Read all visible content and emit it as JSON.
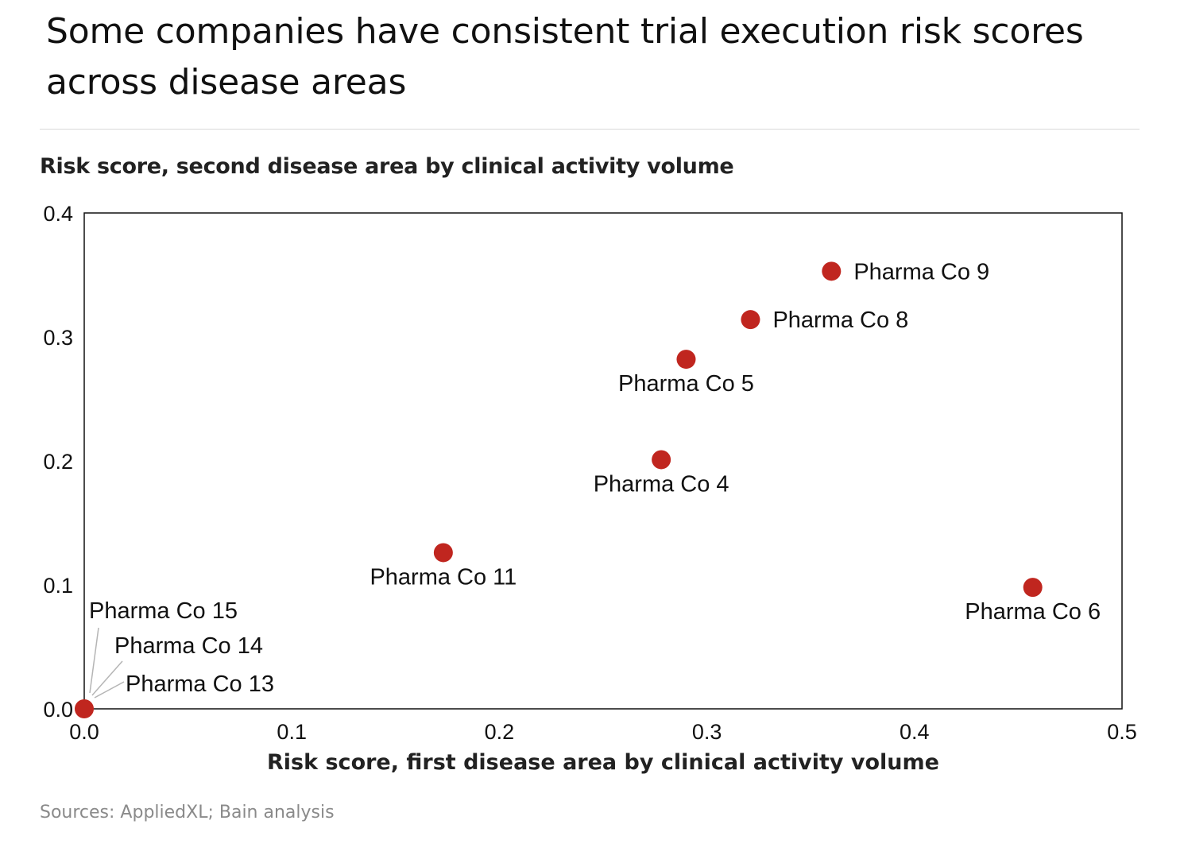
{
  "title": "Some companies have consistent trial execution risk scores across disease areas",
  "source": "Sources: AppliedXL; Bain analysis",
  "chart_data": {
    "type": "scatter",
    "title": "Some companies have consistent trial execution risk scores across disease areas",
    "xlabel": "Risk score, first disease area by clinical activity volume",
    "ylabel": "Risk score, second disease area by clinical activity volume",
    "xlim": [
      0,
      0.5
    ],
    "ylim": [
      0,
      0.4
    ],
    "xticks": [
      0,
      0.1,
      0.2,
      0.3,
      0.4,
      0.5
    ],
    "xtick_labels": [
      "0.0",
      "0.1",
      "0.2",
      "0.3",
      "0.4",
      "0.5"
    ],
    "yticks": [
      0,
      0.1,
      0.2,
      0.3,
      0.4
    ],
    "ytick_labels": [
      "0.0",
      "0.1",
      "0.2",
      "0.3",
      "0.4"
    ],
    "grid": false,
    "marker_color": "#c0261f",
    "points": [
      {
        "label": "Pharma Co 9",
        "x": 0.36,
        "y": 0.353,
        "label_pos": "right"
      },
      {
        "label": "Pharma Co 8",
        "x": 0.321,
        "y": 0.314,
        "label_pos": "right"
      },
      {
        "label": "Pharma Co 5",
        "x": 0.29,
        "y": 0.282,
        "label_pos": "below"
      },
      {
        "label": "Pharma Co 4",
        "x": 0.278,
        "y": 0.201,
        "label_pos": "below"
      },
      {
        "label": "Pharma Co 11",
        "x": 0.173,
        "y": 0.126,
        "label_pos": "below"
      },
      {
        "label": "Pharma Co 6",
        "x": 0.457,
        "y": 0.098,
        "label_pos": "below"
      },
      {
        "label": "Pharma Co 15",
        "x": 0.0,
        "y": 0.0,
        "label_pos": "callout-1"
      },
      {
        "label": "Pharma Co 14",
        "x": 0.0,
        "y": 0.0,
        "label_pos": "callout-2"
      },
      {
        "label": "Pharma Co 13",
        "x": 0.0,
        "y": 0.0,
        "label_pos": "callout-3"
      }
    ]
  }
}
